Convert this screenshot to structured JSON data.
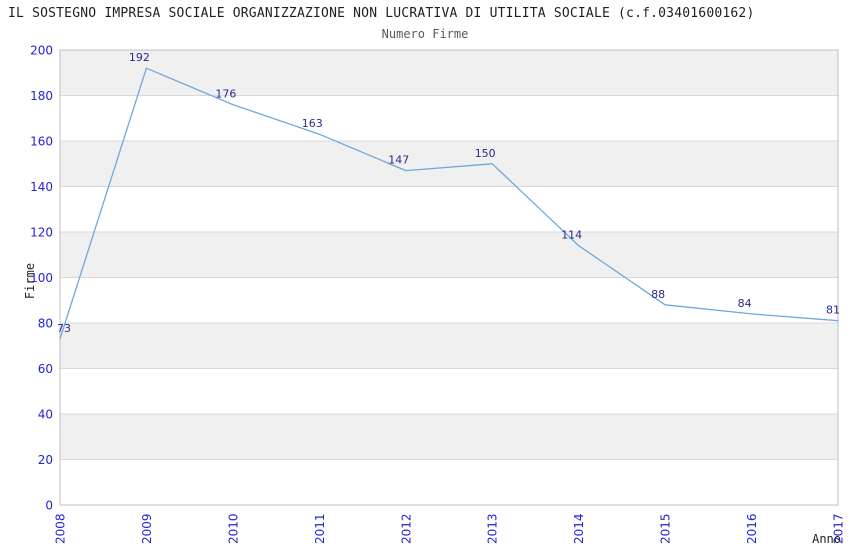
{
  "chart_data": {
    "type": "line",
    "title": "IL SOSTEGNO IMPRESA SOCIALE ORGANIZZAZIONE NON LUCRATIVA DI UTILITA SOCIALE (c.f.03401600162)",
    "subtitle": "Numero Firme",
    "xlabel": "Anno",
    "ylabel": "Firme",
    "categories": [
      "2008",
      "2009",
      "2010",
      "2011",
      "2012",
      "2013",
      "2014",
      "2015",
      "2016",
      "2017"
    ],
    "series": [
      {
        "name": "Numero Firme",
        "values": [
          73,
          192,
          176,
          163,
          147,
          150,
          114,
          88,
          84,
          81
        ]
      }
    ],
    "ylim": [
      0,
      200
    ],
    "ytick_step": 20,
    "yticks": [
      0,
      20,
      40,
      60,
      80,
      100,
      120,
      140,
      160,
      180,
      200
    ],
    "grid": "horizontal-alternating-bands",
    "legend": "none",
    "colors": {
      "line": "#6fa8dc",
      "data_label": "#2a2a8f",
      "tick_label": "#2424d0",
      "band_fill": "#f0f0f0",
      "gridline": "#d9d9d9",
      "plot_border": "#c0c0c0",
      "title": "#1f1f1f",
      "subtitle": "#595959",
      "axis_title": "#1f1f1f",
      "background": "#ffffff"
    }
  }
}
